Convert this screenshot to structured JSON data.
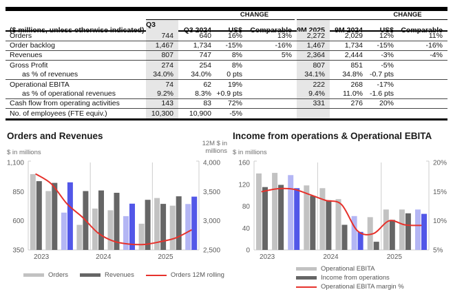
{
  "colors": {
    "bar_light": "#c2c2c2",
    "bar_dark": "#666666",
    "bar_highlight_light": "#b4b6f4",
    "bar_highlight_dark": "#5257e8",
    "line_red": "#e6312b",
    "table_shade": "#e6e6e6",
    "axis_gray": "#cccccc",
    "tick_text": "#5c5c5c"
  },
  "table": {
    "change_label": "CHANGE",
    "col_header_label": "($ millions, unless otherwise indicated)",
    "columns": [
      "Q3 2025",
      "Q3 2024",
      "US$",
      "Comparable",
      "9M 2025",
      "9M 2024",
      "US$",
      "Comparable"
    ],
    "shaded_columns": [
      "Q3 2025",
      "9M 2025"
    ],
    "rows": [
      {
        "label": "Orders",
        "indent": false,
        "border": true,
        "values": [
          "744",
          "640",
          "16%",
          "13%",
          "2,272",
          "2,029",
          "12%",
          "11%"
        ]
      },
      {
        "label": "Order backlog",
        "indent": false,
        "border": true,
        "values": [
          "1,467",
          "1,734",
          "-15%",
          "-16%",
          "1,467",
          "1,734",
          "-15%",
          "-16%"
        ]
      },
      {
        "label": "Revenues",
        "indent": false,
        "border": true,
        "values": [
          "807",
          "747",
          "8%",
          "5%",
          "2,364",
          "2,444",
          "-3%",
          "-4%"
        ]
      },
      {
        "label": "Gross Profit",
        "indent": false,
        "border": false,
        "values": [
          "274",
          "254",
          "8%",
          "",
          "807",
          "851",
          "-5%",
          ""
        ]
      },
      {
        "label": "as % of revenues",
        "indent": true,
        "border": true,
        "values": [
          "34.0%",
          "34.0%",
          "0 pts",
          "",
          "34.1%",
          "34.8%",
          "-0.7 pts",
          ""
        ]
      },
      {
        "label": "Operational EBITA",
        "indent": false,
        "border": false,
        "values": [
          "74",
          "62",
          "19%",
          "",
          "222",
          "268",
          "-17%",
          ""
        ]
      },
      {
        "label": "as % of operational revenues",
        "indent": true,
        "border": true,
        "values": [
          "9.2%",
          "8.3%",
          "+0.9 pts",
          "",
          "9.4%",
          "11.0%",
          "-1.6 pts",
          ""
        ]
      },
      {
        "label": "Cash flow from operating activities",
        "indent": false,
        "border": true,
        "values": [
          "143",
          "83",
          "72%",
          "",
          "331",
          "276",
          "20%",
          ""
        ]
      },
      {
        "label": "No. of employees (FTE equiv.)",
        "indent": false,
        "border": false,
        "values": [
          "10,300",
          "10,900",
          "-5%",
          "",
          "",
          "",
          "",
          ""
        ]
      }
    ]
  },
  "chart_data": [
    {
      "type": "bar+line",
      "title": "Orders and Revenues",
      "left_axis_label": "$ in millions",
      "right_axis_label": "12M $ in\nmillions",
      "years": [
        "2023",
        "2024",
        "2025"
      ],
      "x_quarters": [
        "Q1 2023",
        "Q2 2023",
        "Q3 2023",
        "Q4 2023",
        "Q1 2024",
        "Q2 2024",
        "Q3 2024",
        "Q4 2024",
        "Q1 2025",
        "Q2 2025",
        "Q3 2025"
      ],
      "highlight_indices": [
        2,
        6,
        10
      ],
      "left_axis": {
        "min": 350,
        "max": 1100,
        "ticks": [
          [
            "1,100",
            1100
          ],
          [
            "850",
            850
          ],
          [
            "600",
            600
          ],
          [
            "350",
            350
          ]
        ]
      },
      "right_axis": {
        "min": 2500,
        "max": 4000,
        "ticks": [
          [
            "4,000",
            4000
          ],
          [
            "3,500",
            3500
          ],
          [
            "3,000",
            3000
          ],
          [
            "2,500",
            2500
          ]
        ]
      },
      "series": [
        {
          "name": "Orders",
          "kind": "bar",
          "axis": "left",
          "values": [
            1000,
            855,
            670,
            565,
            705,
            690,
            640,
            575,
            795,
            730,
            744
          ]
        },
        {
          "name": "Revenues",
          "kind": "bar",
          "axis": "left",
          "values": [
            940,
            925,
            930,
            855,
            860,
            840,
            747,
            780,
            745,
            810,
            807
          ]
        },
        {
          "name": "Orders 12M rolling",
          "kind": "line",
          "axis": "right",
          "values": [
            3800,
            3630,
            3290,
            3060,
            2790,
            2650,
            2600,
            2595,
            2640,
            2705,
            2840
          ]
        }
      ],
      "legend_layout": "horizontal",
      "grid": "year-separators",
      "legend_position": "bottom"
    },
    {
      "type": "bar+line",
      "title": "Income from operations & Operational EBITA",
      "left_axis_label": "$ in millions",
      "right_axis_label": "",
      "years": [
        "2023",
        "2024",
        "2025"
      ],
      "x_quarters": [
        "Q1 2023",
        "Q2 2023",
        "Q3 2023",
        "Q4 2023",
        "Q1 2024",
        "Q2 2024",
        "Q3 2024",
        "Q4 2024",
        "Q1 2025",
        "Q2 2025",
        "Q3 2025"
      ],
      "highlight_indices": [
        2,
        6,
        10
      ],
      "left_axis": {
        "min": 0,
        "max": 160,
        "ticks": [
          [
            "160",
            160
          ],
          [
            "120",
            120
          ],
          [
            "80",
            80
          ],
          [
            "40",
            40
          ],
          [
            "0",
            0
          ]
        ]
      },
      "right_axis": {
        "min": 5,
        "max": 20,
        "ticks": [
          [
            "20%",
            20
          ],
          [
            "15%",
            15
          ],
          [
            "10%",
            10
          ],
          [
            "5%",
            5
          ]
        ]
      },
      "series": [
        {
          "name": "Operational EBITA",
          "kind": "bar",
          "axis": "left",
          "values": [
            140,
            141,
            137,
            118,
            113,
            93,
            62,
            60,
            74,
            74,
            74
          ]
        },
        {
          "name": "Income from operations",
          "kind": "bar",
          "axis": "left",
          "values": [
            115,
            119,
            113,
            99,
            91,
            46,
            33,
            15,
            55,
            67,
            66
          ]
        },
        {
          "name": "Operational EBITA margin %",
          "kind": "line",
          "axis": "right",
          "values": [
            15.0,
            15.5,
            15.4,
            14.5,
            13.5,
            12.8,
            8.3,
            7.8,
            10.0,
            9.3,
            9.2
          ]
        }
      ],
      "legend_layout": "vertical",
      "grid": "year-separators",
      "legend_position": "bottom"
    }
  ]
}
